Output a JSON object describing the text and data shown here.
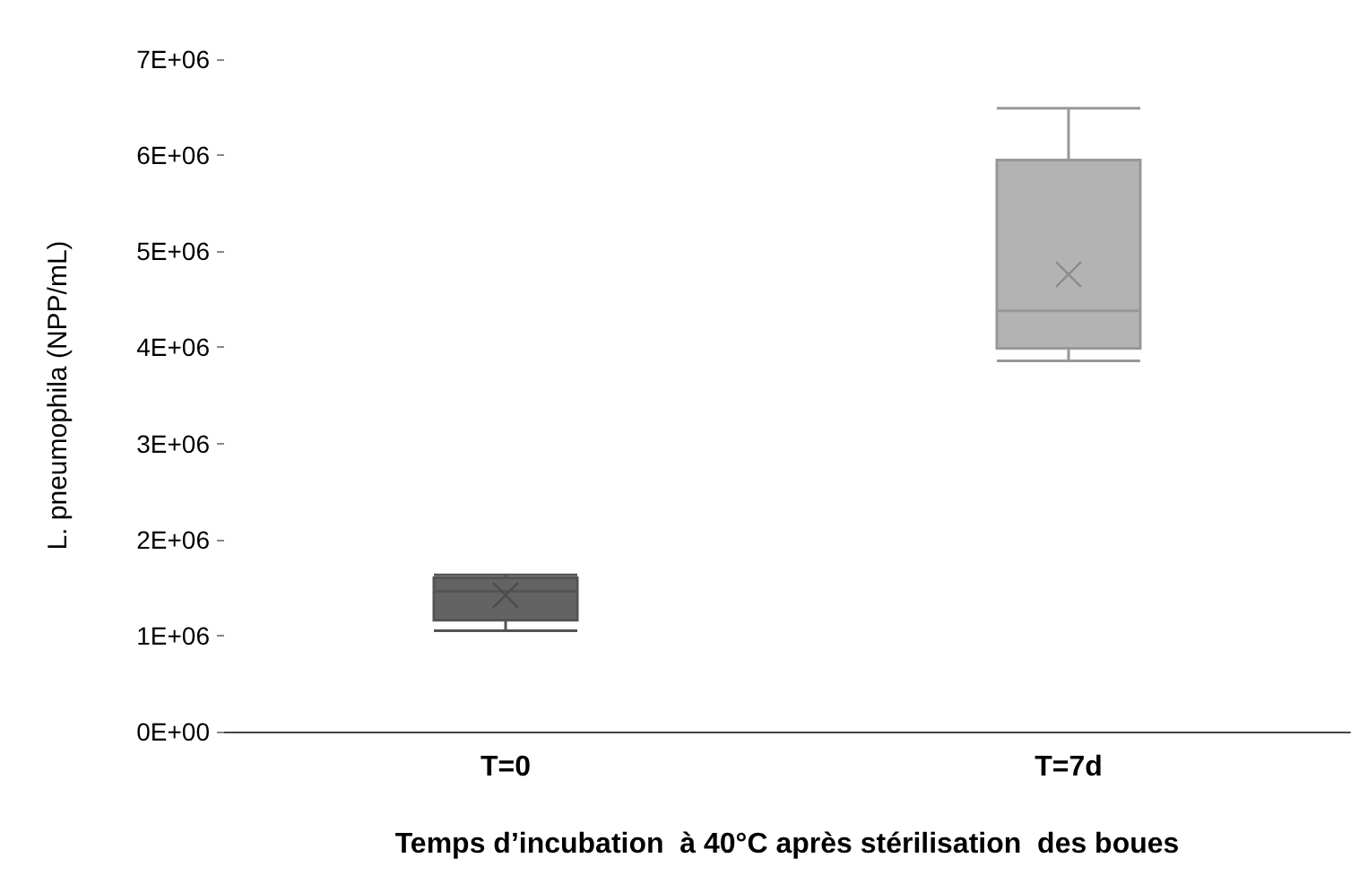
{
  "chart_data": {
    "type": "box",
    "xlabel": "Temps d’incubation  à 40°C après stérilisation  des boues",
    "ylabel": "L. pneumophila (NPP/mL)",
    "categories": [
      "T=0",
      "T=7d"
    ],
    "colors": [
      "#636363",
      "#b3b3b3"
    ],
    "boxes": [
      {
        "low": 1050000,
        "q1": 1160000,
        "median": 1460000,
        "q3": 1600000,
        "high": 1630000,
        "mean": 1420000
      },
      {
        "low": 3860000,
        "q1": 3990000,
        "median": 4380000,
        "q3": 5950000,
        "high": 6490000,
        "mean": 4760000
      }
    ],
    "ylim": [
      0,
      7000000
    ],
    "yticks": [
      {
        "value": 0,
        "label": "0E+00"
      },
      {
        "value": 1000000,
        "label": "1E+06"
      },
      {
        "value": 2000000,
        "label": "2E+06"
      },
      {
        "value": 3000000,
        "label": "3E+06"
      },
      {
        "value": 4000000,
        "label": "4E+06"
      },
      {
        "value": 5000000,
        "label": "5E+06"
      },
      {
        "value": 6000000,
        "label": "6E+06"
      },
      {
        "value": 7000000,
        "label": "7E+06"
      }
    ],
    "grid": false
  }
}
